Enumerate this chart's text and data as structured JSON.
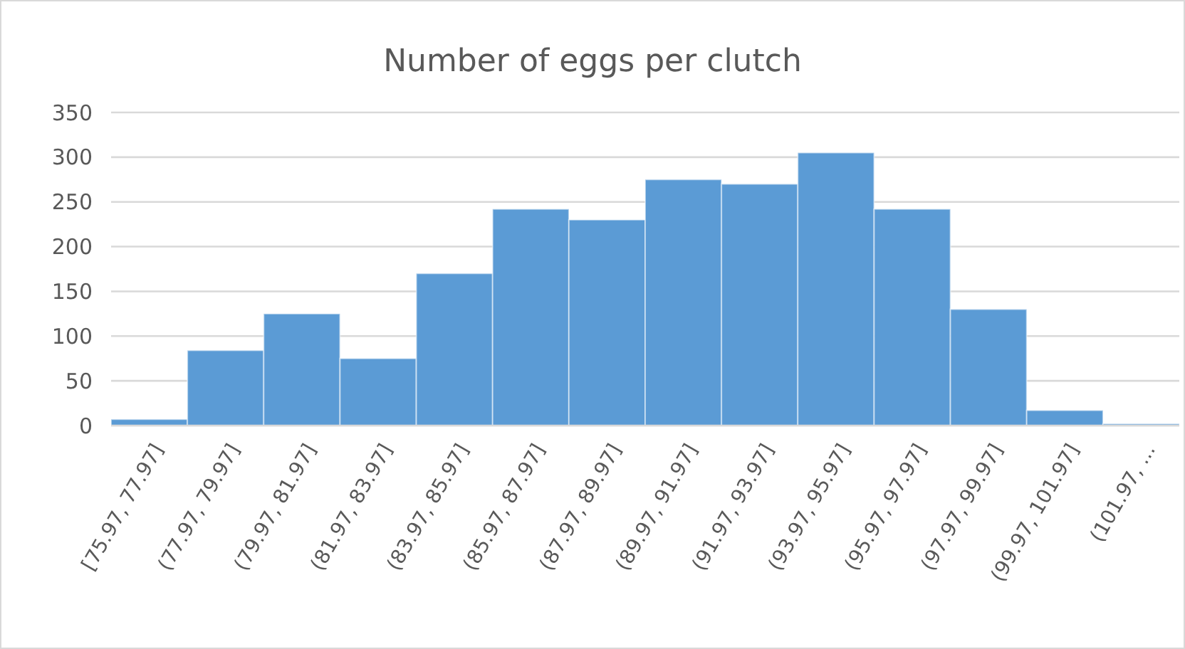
{
  "chart_data": {
    "type": "bar",
    "title": "Number of eggs per clutch",
    "categories": [
      "[75.97, 77.97]",
      "(77.97, 79.97]",
      "(79.97, 81.97]",
      "(81.97, 83.97]",
      "(83.97, 85.97]",
      "(85.97, 87.97]",
      "(87.97, 89.97]",
      "(89.97, 91.97]",
      "(91.97, 93.97]",
      "(93.97, 95.97]",
      "(95.97, 97.97]",
      "(97.97, 99.97]",
      "(99.97, 101.97]",
      "(101.97, ..."
    ],
    "values": [
      7,
      84,
      125,
      75,
      170,
      242,
      230,
      275,
      270,
      305,
      242,
      130,
      17,
      2
    ],
    "color": "#5b9bd5",
    "ylim": [
      0,
      350
    ],
    "yticks": [
      0,
      50,
      100,
      150,
      200,
      250,
      300,
      350
    ],
    "grid": "y"
  }
}
